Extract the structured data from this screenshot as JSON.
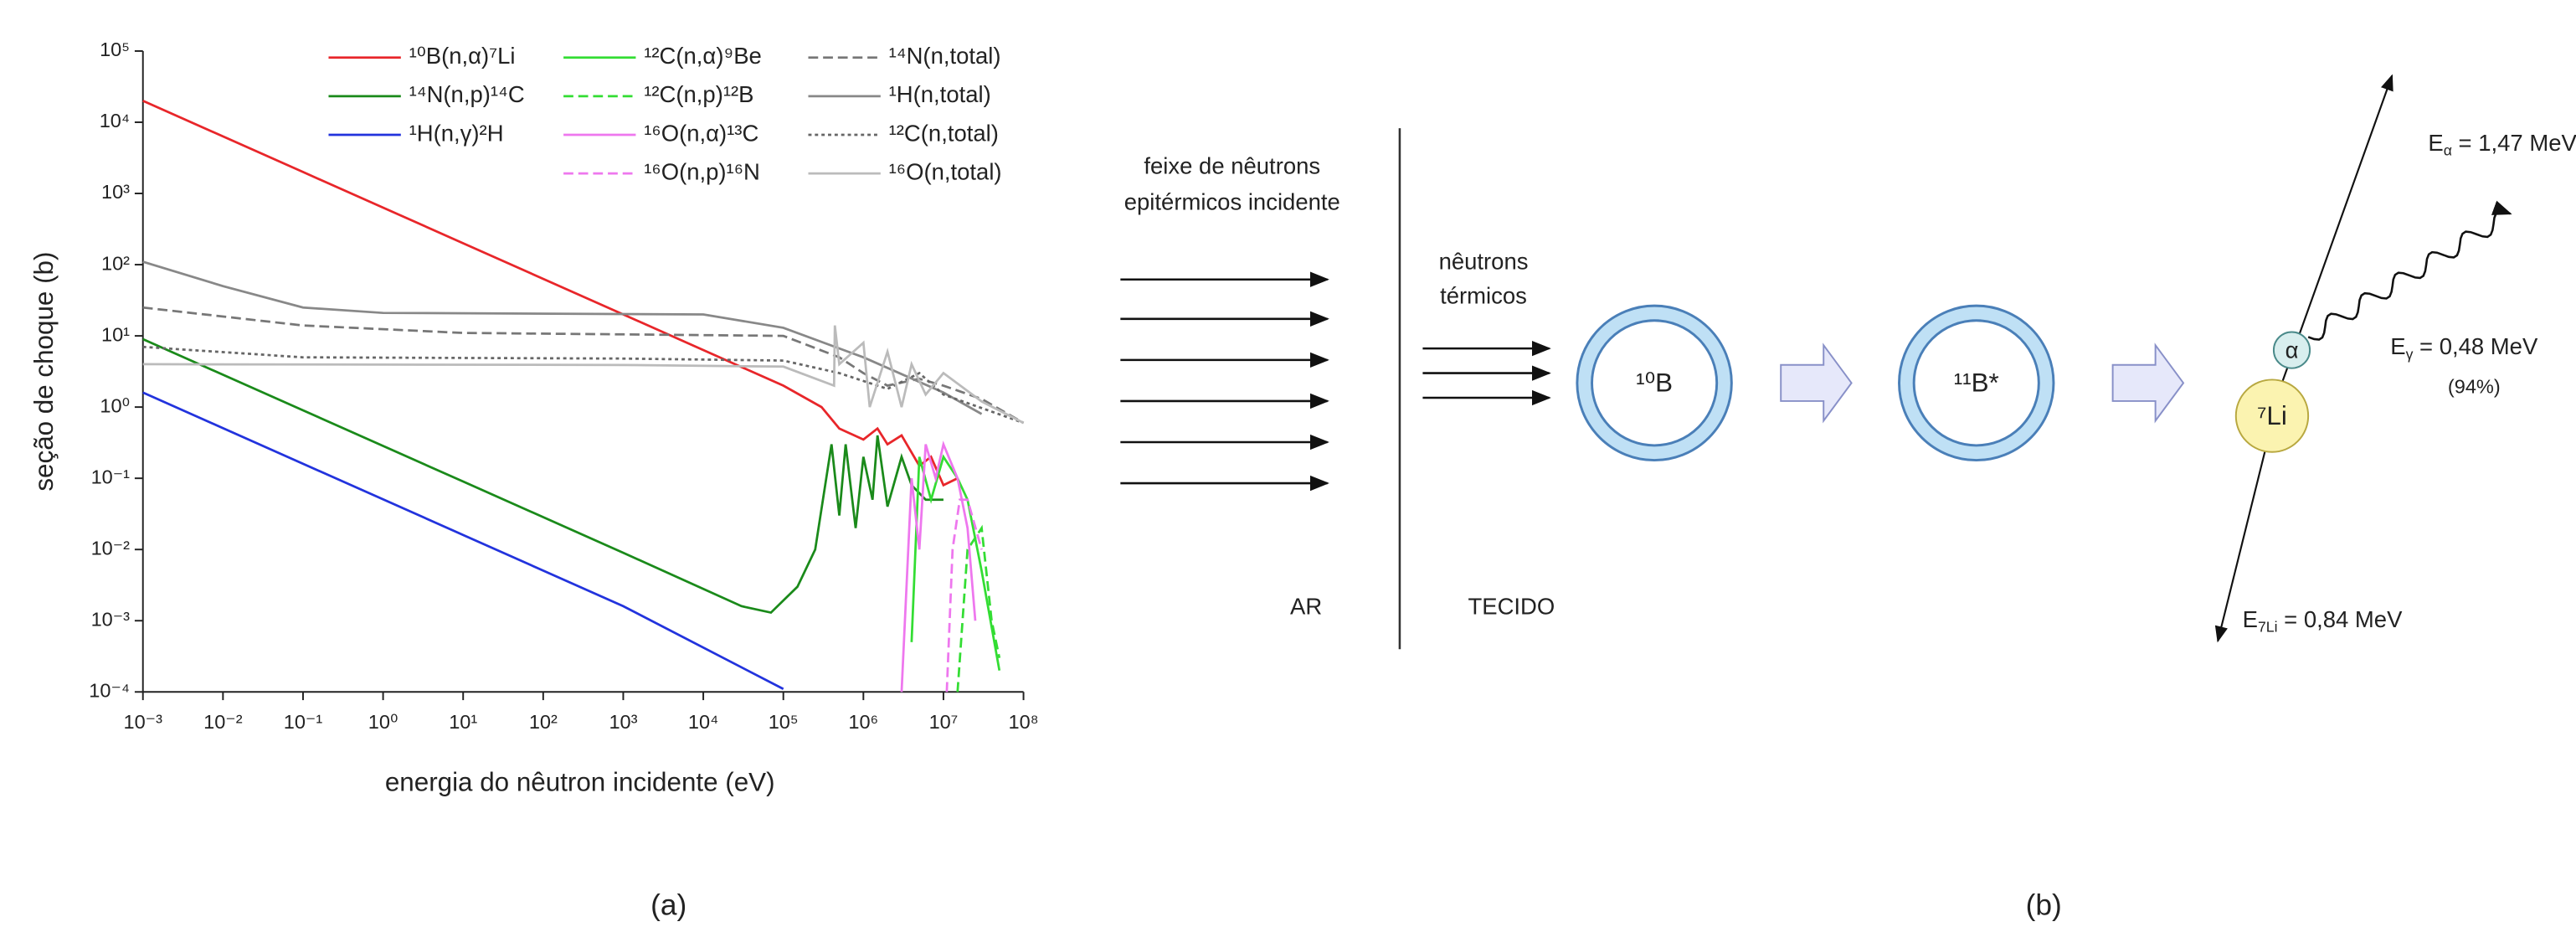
{
  "chart_data": {
    "type": "line",
    "log_x": true,
    "log_y": true,
    "xlabel": "energia do nêutron incidente (eV)",
    "ylabel": "seção de choque (b)",
    "xlim": [
      0.001,
      100000000
    ],
    "ylim": [
      0.0001,
      100000
    ],
    "xticks": [
      {
        "value": 0.001,
        "label": "10⁻³"
      },
      {
        "value": 0.01,
        "label": "10⁻²"
      },
      {
        "value": 0.1,
        "label": "10⁻¹"
      },
      {
        "value": 1,
        "label": "10⁰"
      },
      {
        "value": 10,
        "label": "10¹"
      },
      {
        "value": 100,
        "label": "10²"
      },
      {
        "value": 1000,
        "label": "10³"
      },
      {
        "value": 10000,
        "label": "10⁴"
      },
      {
        "value": 100000,
        "label": "10⁵"
      },
      {
        "value": 1000000,
        "label": "10⁶"
      },
      {
        "value": 10000000,
        "label": "10⁷"
      },
      {
        "value": 100000000,
        "label": "10⁸"
      }
    ],
    "yticks": [
      {
        "value": 0.0001,
        "label": "10⁻⁴"
      },
      {
        "value": 0.001,
        "label": "10⁻³"
      },
      {
        "value": 0.01,
        "label": "10⁻²"
      },
      {
        "value": 0.1,
        "label": "10⁻¹"
      },
      {
        "value": 1,
        "label": "10⁰"
      },
      {
        "value": 10,
        "label": "10¹"
      },
      {
        "value": 100,
        "label": "10²"
      },
      {
        "value": 1000,
        "label": "10³"
      },
      {
        "value": 10000,
        "label": "10⁴"
      },
      {
        "value": 100000,
        "label": "10⁵"
      }
    ],
    "series": [
      {
        "name": "¹⁰B(n,α)⁷Li",
        "color": "#e8262a",
        "style": "solid",
        "x": [
          0.001,
          0.1,
          10,
          1000,
          100000,
          300000,
          500000,
          1000000,
          1500000,
          2000000,
          3000000,
          5000000,
          7000000,
          10000000,
          15000000
        ],
        "values": [
          20000,
          2000,
          200,
          20,
          2,
          1.0,
          0.5,
          0.35,
          0.5,
          0.3,
          0.4,
          0.15,
          0.2,
          0.08,
          0.1
        ]
      },
      {
        "name": "¹⁴N(n,p)¹⁴C",
        "color": "#1a8a1a",
        "style": "solid",
        "x": [
          0.001,
          0.1,
          10,
          1000,
          10000,
          30000,
          70000,
          150000,
          250000,
          400000,
          500000,
          600000,
          800000,
          1000000,
          1300000,
          1500000,
          2000000,
          3000000,
          4000000,
          6000000,
          10000000
        ],
        "values": [
          9,
          0.9,
          0.09,
          0.009,
          0.0028,
          0.0016,
          0.0013,
          0.003,
          0.01,
          0.3,
          0.03,
          0.3,
          0.02,
          0.2,
          0.05,
          0.4,
          0.04,
          0.2,
          0.08,
          0.05,
          0.05
        ]
      },
      {
        "name": "¹H(n,γ)²H",
        "color": "#2233dd",
        "style": "solid",
        "x": [
          0.001,
          10,
          1000,
          100000
        ],
        "values": [
          1.6,
          0.016,
          0.0016,
          0.00011
        ]
      },
      {
        "name": "¹²C(n,α)⁹Be",
        "color": "#33dd33",
        "style": "solid",
        "x": [
          4000000,
          5000000,
          7000000,
          10000000,
          15000000,
          20000000,
          30000000,
          50000000
        ],
        "values": [
          0.0005,
          0.2,
          0.05,
          0.2,
          0.1,
          0.05,
          0.005,
          0.0002
        ]
      },
      {
        "name": "¹²C(n,p)¹²B",
        "color": "#33dd33",
        "style": "dashed",
        "x": [
          15000000,
          20000000,
          30000000,
          40000000,
          50000000
        ],
        "values": [
          0.0001,
          0.01,
          0.02,
          0.001,
          0.0003
        ]
      },
      {
        "name": "¹⁶O(n,α)¹³C",
        "color": "#ee77ee",
        "style": "solid",
        "x": [
          3000000,
          4000000,
          5000000,
          6000000,
          8000000,
          10000000,
          15000000,
          20000000,
          25000000
        ],
        "values": [
          0.0001,
          0.1,
          0.01,
          0.3,
          0.1,
          0.3,
          0.1,
          0.02,
          0.001
        ]
      },
      {
        "name": "¹⁶O(n,p)¹⁶N",
        "color": "#ee77ee",
        "style": "dashed",
        "x": [
          11000000,
          13000000,
          16000000,
          20000000,
          30000000
        ],
        "values": [
          0.0001,
          0.01,
          0.05,
          0.05,
          0.01
        ]
      },
      {
        "name": "¹⁴N(n,total)",
        "color": "#777777",
        "style": "dashed",
        "x": [
          0.001,
          0.1,
          10,
          1000,
          100000,
          500000,
          1000000,
          2000000,
          5000000,
          10000000,
          30000000,
          100000000
        ],
        "values": [
          25,
          14,
          11,
          10.5,
          10,
          5,
          3,
          2,
          2.5,
          2,
          1.3,
          0.6
        ]
      },
      {
        "name": "¹H(n,total)",
        "color": "#888888",
        "style": "solid",
        "x": [
          0.001,
          0.01,
          0.1,
          1,
          10000,
          100000,
          1000000,
          10000000,
          30000000
        ],
        "values": [
          110,
          50,
          25,
          21,
          20,
          13,
          5,
          1.6,
          0.8
        ]
      },
      {
        "name": "¹²C(n,total)",
        "color": "#666666",
        "style": "dotted",
        "x": [
          0.001,
          0.1,
          1000,
          100000,
          500000,
          2000000,
          5000000,
          10000000,
          100000000
        ],
        "values": [
          7,
          5,
          4.8,
          4.5,
          3,
          1.8,
          3,
          1.5,
          0.6
        ]
      },
      {
        "name": "¹⁶O(n,total)",
        "color": "#bbbbbb",
        "style": "solid",
        "x": [
          0.001,
          1000,
          100000,
          430000,
          440000,
          500000,
          1000000,
          1200000,
          2000000,
          3000000,
          4000000,
          6000000,
          10000000,
          30000000,
          100000000
        ],
        "values": [
          4,
          3.9,
          3.7,
          2,
          14,
          4,
          8,
          1,
          6,
          1,
          4,
          1.5,
          3,
          1.2,
          0.6
        ]
      }
    ]
  },
  "diagram": {
    "beam_label": [
      "feixe de nêutrons",
      "epitérmicos incidente"
    ],
    "thermal_label": [
      "nêutrons",
      "térmicos"
    ],
    "region_air": "AR",
    "region_tissue": "TECIDO",
    "nucleus_b10": "¹⁰B",
    "nucleus_b11": "¹¹B*",
    "alpha": "α",
    "lithium": "⁷Li",
    "e_alpha": {
      "symbol": "E",
      "sub": "α",
      "rest": " = 1,47 MeV"
    },
    "e_gamma": {
      "symbol": "E",
      "sub": "γ",
      "rest": " = 0,48 MeV",
      "note": "(94%)"
    },
    "e_li": {
      "symbol": "E",
      "sub": "7Li",
      "rest": " = 0,84 MeV"
    }
  },
  "captions": [
    "(a)",
    "(b)"
  ]
}
